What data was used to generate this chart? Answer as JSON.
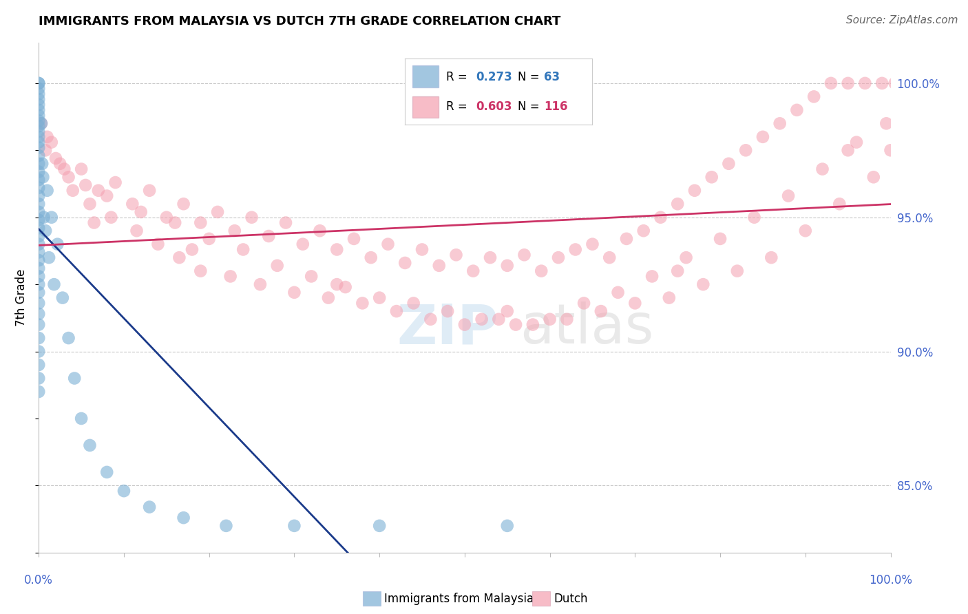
{
  "title": "IMMIGRANTS FROM MALAYSIA VS DUTCH 7TH GRADE CORRELATION CHART",
  "source": "Source: ZipAtlas.com",
  "ylabel": "7th Grade",
  "ylabel_right_ticks": [
    85.0,
    90.0,
    95.0,
    100.0
  ],
  "xlim": [
    0.0,
    100.0
  ],
  "ylim": [
    82.5,
    101.5
  ],
  "legend_blue_r": "0.273",
  "legend_blue_n": "63",
  "legend_pink_r": "0.603",
  "legend_pink_n": "116",
  "blue_color": "#7bafd4",
  "pink_color": "#f4a0b0",
  "trend_blue_color": "#1a3a8a",
  "trend_pink_color": "#cc3366",
  "blue_scatter_x": [
    0.0,
    0.0,
    0.0,
    0.0,
    0.0,
    0.0,
    0.0,
    0.0,
    0.0,
    0.0,
    0.0,
    0.0,
    0.0,
    0.0,
    0.0,
    0.0,
    0.0,
    0.0,
    0.0,
    0.0,
    0.0,
    0.0,
    0.0,
    0.0,
    0.0,
    0.0,
    0.0,
    0.0,
    0.0,
    0.0,
    0.0,
    0.0,
    0.0,
    0.0,
    0.0,
    0.0,
    0.0,
    0.0,
    0.0,
    0.0,
    0.3,
    0.4,
    0.5,
    0.6,
    0.8,
    1.0,
    1.2,
    1.5,
    1.8,
    2.2,
    2.8,
    3.5,
    4.2,
    5.0,
    6.0,
    8.0,
    10.0,
    13.0,
    17.0,
    22.0,
    30.0,
    40.0,
    55.0
  ],
  "blue_scatter_y": [
    100.0,
    100.0,
    99.8,
    99.6,
    99.4,
    99.2,
    99.0,
    98.8,
    98.6,
    98.4,
    98.2,
    98.0,
    97.8,
    97.6,
    97.3,
    97.0,
    96.7,
    96.4,
    96.1,
    95.8,
    95.5,
    95.2,
    94.9,
    94.6,
    94.3,
    94.0,
    93.7,
    93.4,
    93.1,
    92.8,
    92.5,
    92.2,
    91.8,
    91.4,
    91.0,
    90.5,
    90.0,
    89.5,
    89.0,
    88.5,
    98.5,
    97.0,
    96.5,
    95.0,
    94.5,
    96.0,
    93.5,
    95.0,
    92.5,
    94.0,
    92.0,
    90.5,
    89.0,
    87.5,
    86.5,
    85.5,
    84.8,
    84.2,
    83.8,
    83.5,
    83.5,
    83.5,
    83.5
  ],
  "pink_scatter_x": [
    0.3,
    0.8,
    1.5,
    2.5,
    3.5,
    5.0,
    7.0,
    9.0,
    11.0,
    13.0,
    15.0,
    17.0,
    19.0,
    21.0,
    23.0,
    25.0,
    27.0,
    29.0,
    31.0,
    33.0,
    35.0,
    37.0,
    39.0,
    41.0,
    43.0,
    45.0,
    47.0,
    49.0,
    51.0,
    53.0,
    55.0,
    57.0,
    59.0,
    61.0,
    63.0,
    65.0,
    67.0,
    69.0,
    71.0,
    73.0,
    75.0,
    77.0,
    79.0,
    81.0,
    83.0,
    85.0,
    87.0,
    89.0,
    91.0,
    93.0,
    95.0,
    97.0,
    99.0,
    100.5,
    102.0,
    2.0,
    4.0,
    6.0,
    8.5,
    11.5,
    14.0,
    16.5,
    19.0,
    22.5,
    26.0,
    30.0,
    34.0,
    38.0,
    42.0,
    46.0,
    50.0,
    54.0,
    58.0,
    62.0,
    66.0,
    70.0,
    74.0,
    78.0,
    82.0,
    86.0,
    90.0,
    94.0,
    98.0,
    100.0,
    1.0,
    3.0,
    5.5,
    8.0,
    12.0,
    16.0,
    20.0,
    24.0,
    28.0,
    32.0,
    36.0,
    40.0,
    44.0,
    48.0,
    52.0,
    56.0,
    60.0,
    64.0,
    68.0,
    72.0,
    76.0,
    80.0,
    84.0,
    88.0,
    92.0,
    96.0,
    99.5,
    101.5,
    6.5,
    18.0,
    35.0,
    55.0,
    75.0,
    95.0
  ],
  "pink_scatter_y": [
    98.5,
    97.5,
    97.8,
    97.0,
    96.5,
    96.8,
    96.0,
    96.3,
    95.5,
    96.0,
    95.0,
    95.5,
    94.8,
    95.2,
    94.5,
    95.0,
    94.3,
    94.8,
    94.0,
    94.5,
    93.8,
    94.2,
    93.5,
    94.0,
    93.3,
    93.8,
    93.2,
    93.6,
    93.0,
    93.5,
    93.2,
    93.6,
    93.0,
    93.5,
    93.8,
    94.0,
    93.5,
    94.2,
    94.5,
    95.0,
    95.5,
    96.0,
    96.5,
    97.0,
    97.5,
    98.0,
    98.5,
    99.0,
    99.5,
    100.0,
    100.0,
    100.0,
    100.0,
    100.0,
    100.0,
    97.2,
    96.0,
    95.5,
    95.0,
    94.5,
    94.0,
    93.5,
    93.0,
    92.8,
    92.5,
    92.2,
    92.0,
    91.8,
    91.5,
    91.2,
    91.0,
    91.2,
    91.0,
    91.2,
    91.5,
    91.8,
    92.0,
    92.5,
    93.0,
    93.5,
    94.5,
    95.5,
    96.5,
    97.5,
    98.0,
    96.8,
    96.2,
    95.8,
    95.2,
    94.8,
    94.2,
    93.8,
    93.2,
    92.8,
    92.4,
    92.0,
    91.8,
    91.5,
    91.2,
    91.0,
    91.2,
    91.8,
    92.2,
    92.8,
    93.5,
    94.2,
    95.0,
    95.8,
    96.8,
    97.8,
    98.5,
    99.5,
    94.8,
    93.8,
    92.5,
    91.5,
    93.0,
    97.5
  ]
}
